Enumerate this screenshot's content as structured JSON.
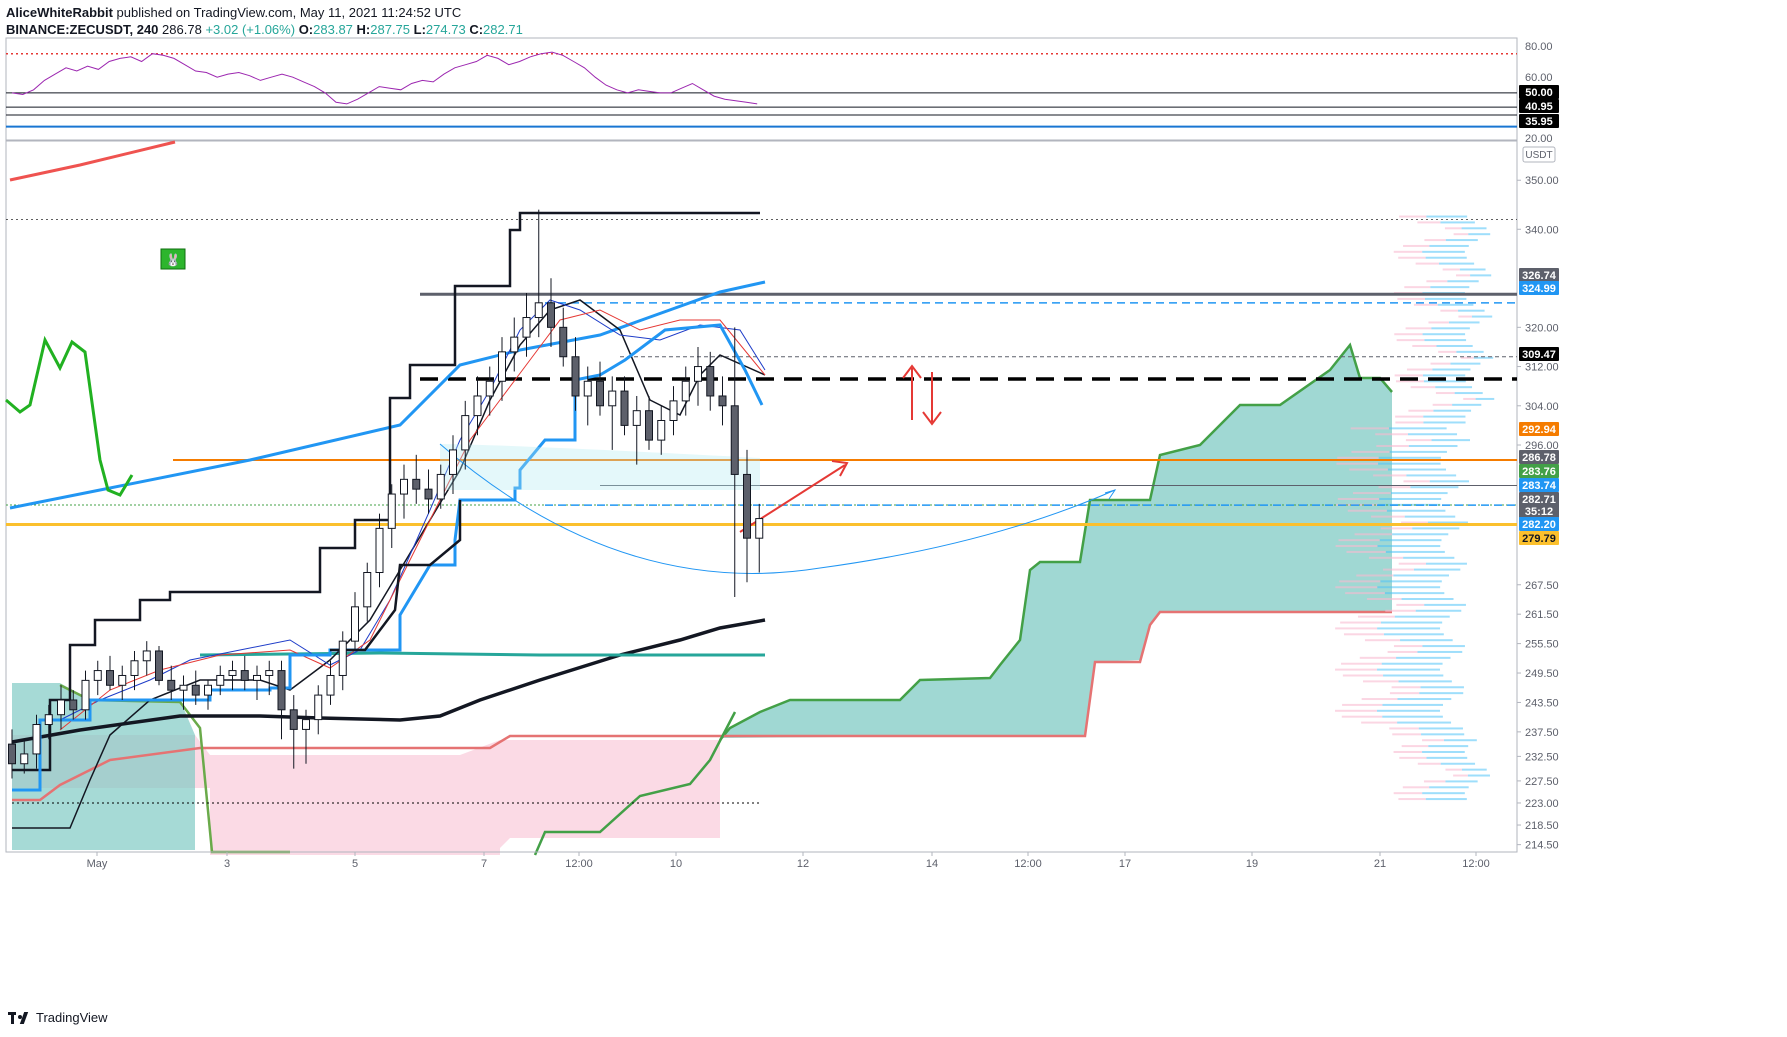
{
  "header": {
    "author": "AliceWhiteRabbit",
    "published_text": "published on TradingView.com, May 11, 2021 11:24:52 UTC",
    "symbol": "BINANCE:ZECUSDT, 240",
    "last": "286.78",
    "change": "+3.02 (+1.06%)",
    "o_label": "O:",
    "o": "283.87",
    "h_label": "H:",
    "h": "287.75",
    "l_label": "L:",
    "l": "274.73",
    "c_label": "C:",
    "c": "282.71"
  },
  "footer": {
    "brand": "TradingView"
  },
  "colors": {
    "cloud_bull": "#80cbc4",
    "cloud_bear": "#f8bbd0",
    "candle_up": "#ffffff",
    "candle_down": "#5d606b",
    "orange": "#f57c00",
    "yellow": "#fbc02d",
    "blue": "#2196f3",
    "red_arrow": "#e53935",
    "rsi": "#9c27b0"
  },
  "chart_data": [
    {
      "type": "line",
      "name": "RSI panel",
      "y_tick_labels": [
        "80.00",
        "60.00",
        "20.00"
      ],
      "price_labels": [
        {
          "value": "50.00",
          "bg": "#000000"
        },
        {
          "value": "40.95",
          "bg": "#000000"
        },
        {
          "value": "35.95",
          "bg": "#000000"
        }
      ],
      "ylim": [
        20,
        85
      ],
      "series": [
        {
          "values": [
            50,
            49,
            52,
            58,
            62,
            66,
            64,
            67,
            65,
            70,
            72,
            73,
            70,
            75,
            74,
            72,
            68,
            64,
            63,
            60,
            62,
            63,
            61,
            58,
            60,
            62,
            60,
            57,
            54,
            50,
            44,
            43,
            46,
            50,
            54,
            53,
            52,
            56,
            58,
            57,
            62,
            66,
            68,
            70,
            74,
            72,
            68,
            70,
            73,
            75,
            76,
            74,
            70,
            66,
            60,
            55,
            52,
            50,
            52,
            51,
            50,
            50,
            53,
            56,
            52,
            48,
            46,
            45,
            44,
            43
          ]
        }
      ]
    },
    {
      "type": "candlestick",
      "name": "price panel",
      "currency": "USDT",
      "ylim": [
        213,
        358
      ],
      "y_tick_labels": [
        "350.00",
        "340.00",
        "320.00",
        "312.00",
        "304.00",
        "296.00",
        "267.50",
        "261.50",
        "255.50",
        "249.50",
        "243.50",
        "237.50",
        "232.50",
        "227.50",
        "223.00",
        "218.50",
        "214.50"
      ],
      "price_labels": [
        {
          "value": "326.74",
          "bg": "#5d606b"
        },
        {
          "value": "324.99",
          "bg": "#2196f3"
        },
        {
          "value": "309.47",
          "bg": "#000000"
        },
        {
          "value": "292.94",
          "bg": "#f57c00"
        },
        {
          "value": "286.78",
          "bg": "#5d606b"
        },
        {
          "value": "283.76",
          "bg": "#43a047"
        },
        {
          "value": "283.74",
          "bg": "#2196f3"
        },
        {
          "value": "282.71",
          "bg": "#5d606b"
        },
        {
          "value": "35:12",
          "bg": "#5d606b"
        },
        {
          "value": "282.20",
          "bg": "#2196f3"
        },
        {
          "value": "279.79",
          "bg": "#fbc02d"
        }
      ],
      "x_tick_labels": [
        "May",
        "3",
        "5",
        "7",
        "12:00",
        "10",
        "12",
        "14",
        "12:00",
        "17",
        "19",
        "21",
        "12:00"
      ],
      "candles": [
        [
          235,
          238,
          228,
          231
        ],
        [
          231,
          236,
          229,
          233
        ],
        [
          233,
          241,
          230,
          239
        ],
        [
          239,
          243,
          236,
          241
        ],
        [
          241,
          247,
          238,
          244
        ],
        [
          244,
          246,
          240,
          242
        ],
        [
          242,
          250,
          240,
          248
        ],
        [
          248,
          252,
          245,
          250
        ],
        [
          250,
          253,
          246,
          247
        ],
        [
          247,
          251,
          244,
          249
        ],
        [
          249,
          254,
          246,
          252
        ],
        [
          252,
          256,
          249,
          254
        ],
        [
          254,
          255,
          247,
          248
        ],
        [
          248,
          251,
          244,
          246
        ],
        [
          246,
          249,
          242,
          247
        ],
        [
          247,
          250,
          243,
          245
        ],
        [
          245,
          248,
          242,
          247
        ],
        [
          247,
          251,
          245,
          249
        ],
        [
          249,
          252,
          246,
          250
        ],
        [
          250,
          253,
          246,
          248
        ],
        [
          248,
          251,
          244,
          249
        ],
        [
          249,
          252,
          245,
          250
        ],
        [
          250,
          252,
          236,
          242
        ],
        [
          242,
          245,
          230,
          238
        ],
        [
          238,
          242,
          231,
          240
        ],
        [
          240,
          247,
          237,
          245
        ],
        [
          245,
          252,
          243,
          249
        ],
        [
          249,
          258,
          246,
          256
        ],
        [
          256,
          266,
          254,
          263
        ],
        [
          263,
          272,
          260,
          270
        ],
        [
          270,
          282,
          267,
          279
        ],
        [
          279,
          288,
          275,
          286
        ],
        [
          286,
          292,
          281,
          289
        ],
        [
          289,
          294,
          284,
          287
        ],
        [
          287,
          291,
          282,
          285
        ],
        [
          285,
          292,
          283,
          290
        ],
        [
          290,
          298,
          286,
          295
        ],
        [
          295,
          305,
          291,
          302
        ],
        [
          302,
          310,
          298,
          306
        ],
        [
          306,
          312,
          302,
          309
        ],
        [
          309,
          318,
          305,
          315
        ],
        [
          315,
          322,
          311,
          318
        ],
        [
          318,
          327,
          314,
          322
        ],
        [
          322,
          344,
          318,
          325
        ],
        [
          325,
          330,
          316,
          320
        ],
        [
          320,
          324,
          312,
          314
        ],
        [
          314,
          318,
          303,
          306
        ],
        [
          306,
          312,
          300,
          309
        ],
        [
          309,
          313,
          302,
          304
        ],
        [
          304,
          310,
          295,
          307
        ],
        [
          307,
          310,
          298,
          300
        ],
        [
          300,
          306,
          292,
          303
        ],
        [
          303,
          306,
          295,
          297
        ],
        [
          297,
          304,
          294,
          301
        ],
        [
          301,
          308,
          298,
          305
        ],
        [
          305,
          312,
          302,
          309
        ],
        [
          309,
          316,
          304,
          312
        ],
        [
          312,
          315,
          303,
          306
        ],
        [
          306,
          310,
          300,
          304
        ],
        [
          304,
          320,
          265,
          290
        ],
        [
          290,
          295,
          268,
          277
        ],
        [
          277,
          284,
          270,
          281
        ]
      ],
      "levels": [
        326.74,
        324.99,
        309.47,
        292.94,
        287.75,
        283.76,
        283.74,
        279.79,
        342.0,
        223.0
      ],
      "annotations": [
        "arrow up-right",
        "double arrow up/down",
        "curved projection arc"
      ]
    }
  ]
}
